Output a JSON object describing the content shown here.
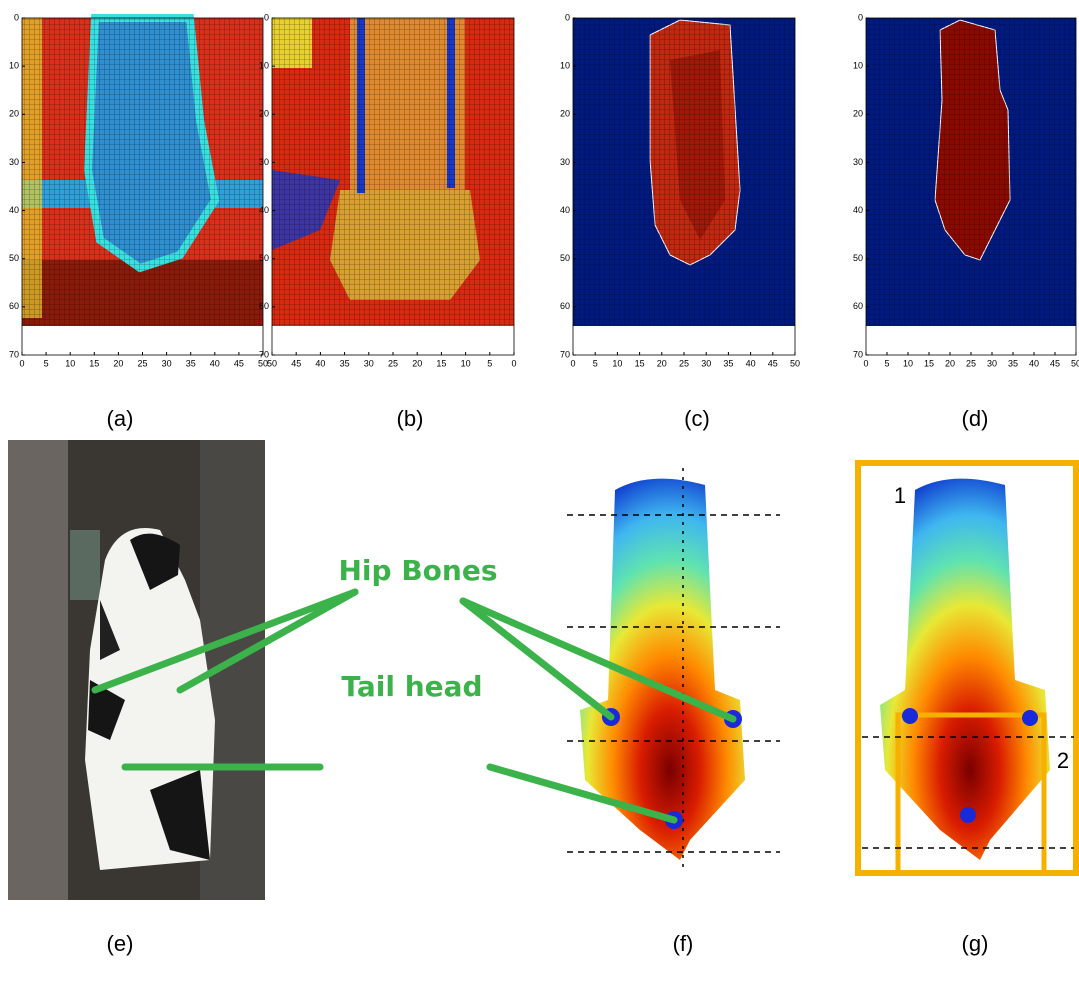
{
  "panels": [
    {
      "label": "(a)",
      "xticks": [
        0,
        5,
        10,
        15,
        20,
        25,
        30,
        35,
        40,
        45,
        50
      ],
      "yticks": [
        0,
        10,
        20,
        30,
        40,
        50,
        60,
        70
      ]
    },
    {
      "label": "(b)",
      "xticks": [
        50,
        45,
        40,
        35,
        30,
        25,
        20,
        15,
        10,
        5,
        0
      ],
      "yticks": [
        0,
        10,
        20,
        30,
        40,
        50,
        60,
        70
      ]
    },
    {
      "label": "(c)",
      "xticks": [
        0,
        5,
        10,
        15,
        20,
        25,
        30,
        35,
        40,
        45,
        50
      ],
      "yticks": [
        0,
        10,
        20,
        30,
        40,
        50,
        60,
        70
      ]
    },
    {
      "label": "(d)",
      "xticks": [
        0,
        5,
        10,
        15,
        20,
        25,
        30,
        35,
        40,
        45,
        50
      ],
      "yticks": [
        0,
        10,
        20,
        30,
        40,
        50,
        60,
        70
      ]
    }
  ],
  "bottom_panels": [
    {
      "label": "(e)"
    },
    {
      "label": "(f)"
    },
    {
      "label": "(g)"
    }
  ],
  "annotations": {
    "hip_bones": "Hip Bones",
    "tail_head": "Tail head",
    "region_1": "1",
    "region_2": "2"
  }
}
